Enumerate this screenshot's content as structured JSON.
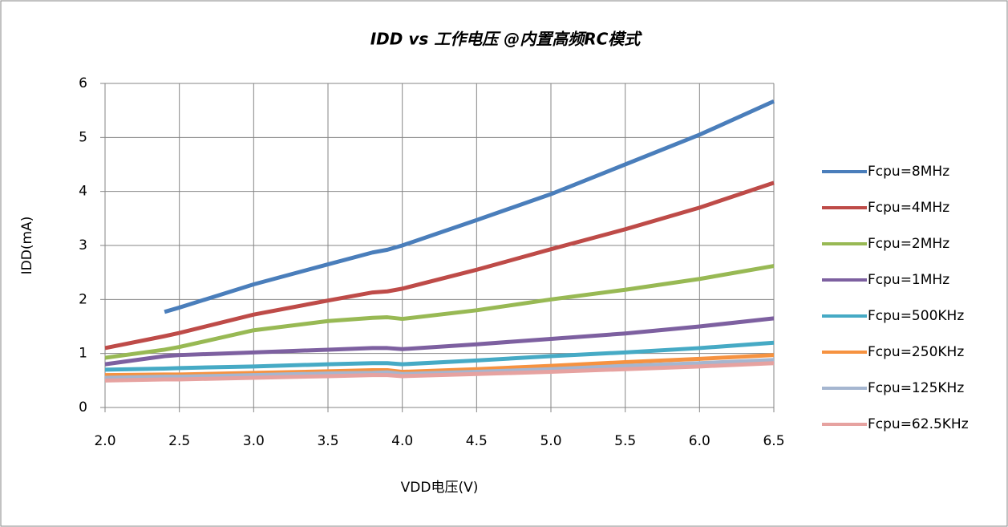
{
  "chart_data": {
    "type": "line",
    "title": "IDD vs 工作电压 @内置高频RC模式",
    "x_label": "VDD电压(V)",
    "y_label": "IDD(mA)",
    "x": [
      2.0,
      2.4,
      2.5,
      3.0,
      3.5,
      3.8,
      3.9,
      4.0,
      4.5,
      5.0,
      5.5,
      6.0,
      6.5
    ],
    "xlim": [
      2.0,
      6.5
    ],
    "ylim": [
      0,
      6
    ],
    "xticks": [
      {
        "value": 2.0,
        "label": "2.0"
      },
      2.5,
      {
        "value": 3.0,
        "label": "3.0"
      },
      3.5,
      {
        "value": 4.0,
        "label": "4.0"
      },
      4.5,
      {
        "value": 5.0,
        "label": "5.0"
      },
      5.5,
      {
        "value": 6.0,
        "label": "6.0"
      },
      6.5
    ],
    "yticks": [
      0,
      1,
      2,
      3,
      4,
      5,
      6
    ],
    "grid": true,
    "legend": "right",
    "series": [
      {
        "name": "Fcpu=8MHz",
        "color": "#4a7ebb",
        "values": [
          null,
          1.77,
          1.85,
          2.28,
          2.65,
          2.87,
          2.92,
          3.0,
          3.47,
          3.95,
          4.5,
          5.05,
          5.67
        ]
      },
      {
        "name": "Fcpu=4MHz",
        "color": "#be4b48",
        "values": [
          1.1,
          1.32,
          1.38,
          1.72,
          1.98,
          2.13,
          2.15,
          2.2,
          2.55,
          2.93,
          3.3,
          3.7,
          4.16
        ]
      },
      {
        "name": "Fcpu=2MHz",
        "color": "#98b954",
        "values": [
          0.92,
          1.07,
          1.12,
          1.43,
          1.6,
          1.66,
          1.67,
          1.64,
          1.8,
          2.0,
          2.18,
          2.38,
          2.62
        ]
      },
      {
        "name": "Fcpu=1MHz",
        "color": "#7d60a0",
        "values": [
          0.8,
          0.95,
          0.97,
          1.02,
          1.07,
          1.1,
          1.1,
          1.08,
          1.17,
          1.27,
          1.37,
          1.5,
          1.65
        ]
      },
      {
        "name": "Fcpu=500KHz",
        "color": "#46aac5",
        "values": [
          0.7,
          0.72,
          0.73,
          0.76,
          0.8,
          0.82,
          0.82,
          0.8,
          0.87,
          0.95,
          1.02,
          1.1,
          1.2
        ]
      },
      {
        "name": "Fcpu=250KHz",
        "color": "#f69240",
        "values": [
          0.6,
          0.61,
          0.61,
          0.64,
          0.67,
          0.69,
          0.69,
          0.66,
          0.71,
          0.77,
          0.84,
          0.9,
          0.97
        ]
      },
      {
        "name": "Fcpu=125KHz",
        "color": "#a5b6d0",
        "values": [
          0.55,
          0.57,
          0.57,
          0.6,
          0.63,
          0.64,
          0.65,
          0.62,
          0.66,
          0.71,
          0.77,
          0.82,
          0.88
        ]
      },
      {
        "name": "Fcpu=62.5KHz",
        "color": "#e6a2a0",
        "values": [
          0.5,
          0.52,
          0.52,
          0.55,
          0.58,
          0.6,
          0.6,
          0.58,
          0.62,
          0.66,
          0.71,
          0.76,
          0.82
        ]
      }
    ]
  }
}
